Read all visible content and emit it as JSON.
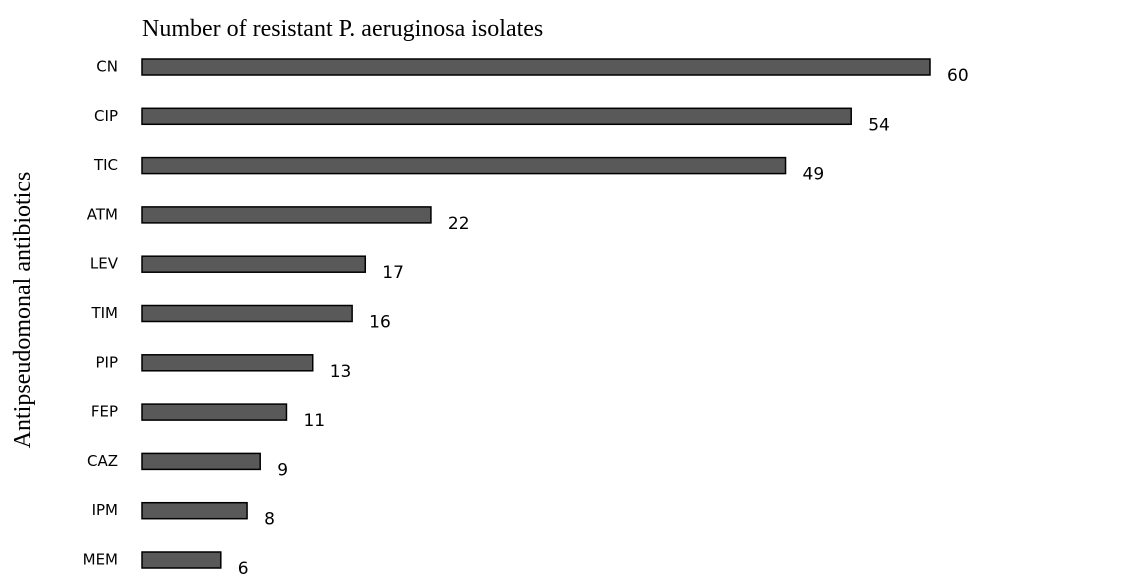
{
  "chart_data": {
    "type": "barh",
    "title": "Number of resistant P. aeruginosa isolates",
    "y_label": "Antipseudomonal antibiotics",
    "categories": [
      "CN",
      "CIP",
      "TIC",
      "ATM",
      "LEV",
      "TIM",
      "PIP",
      "FEP",
      "CAZ",
      "IPM",
      "MEM"
    ],
    "values": [
      60,
      54,
      49,
      22,
      17,
      16,
      13,
      11,
      9,
      8,
      6
    ],
    "color": "#595959"
  }
}
